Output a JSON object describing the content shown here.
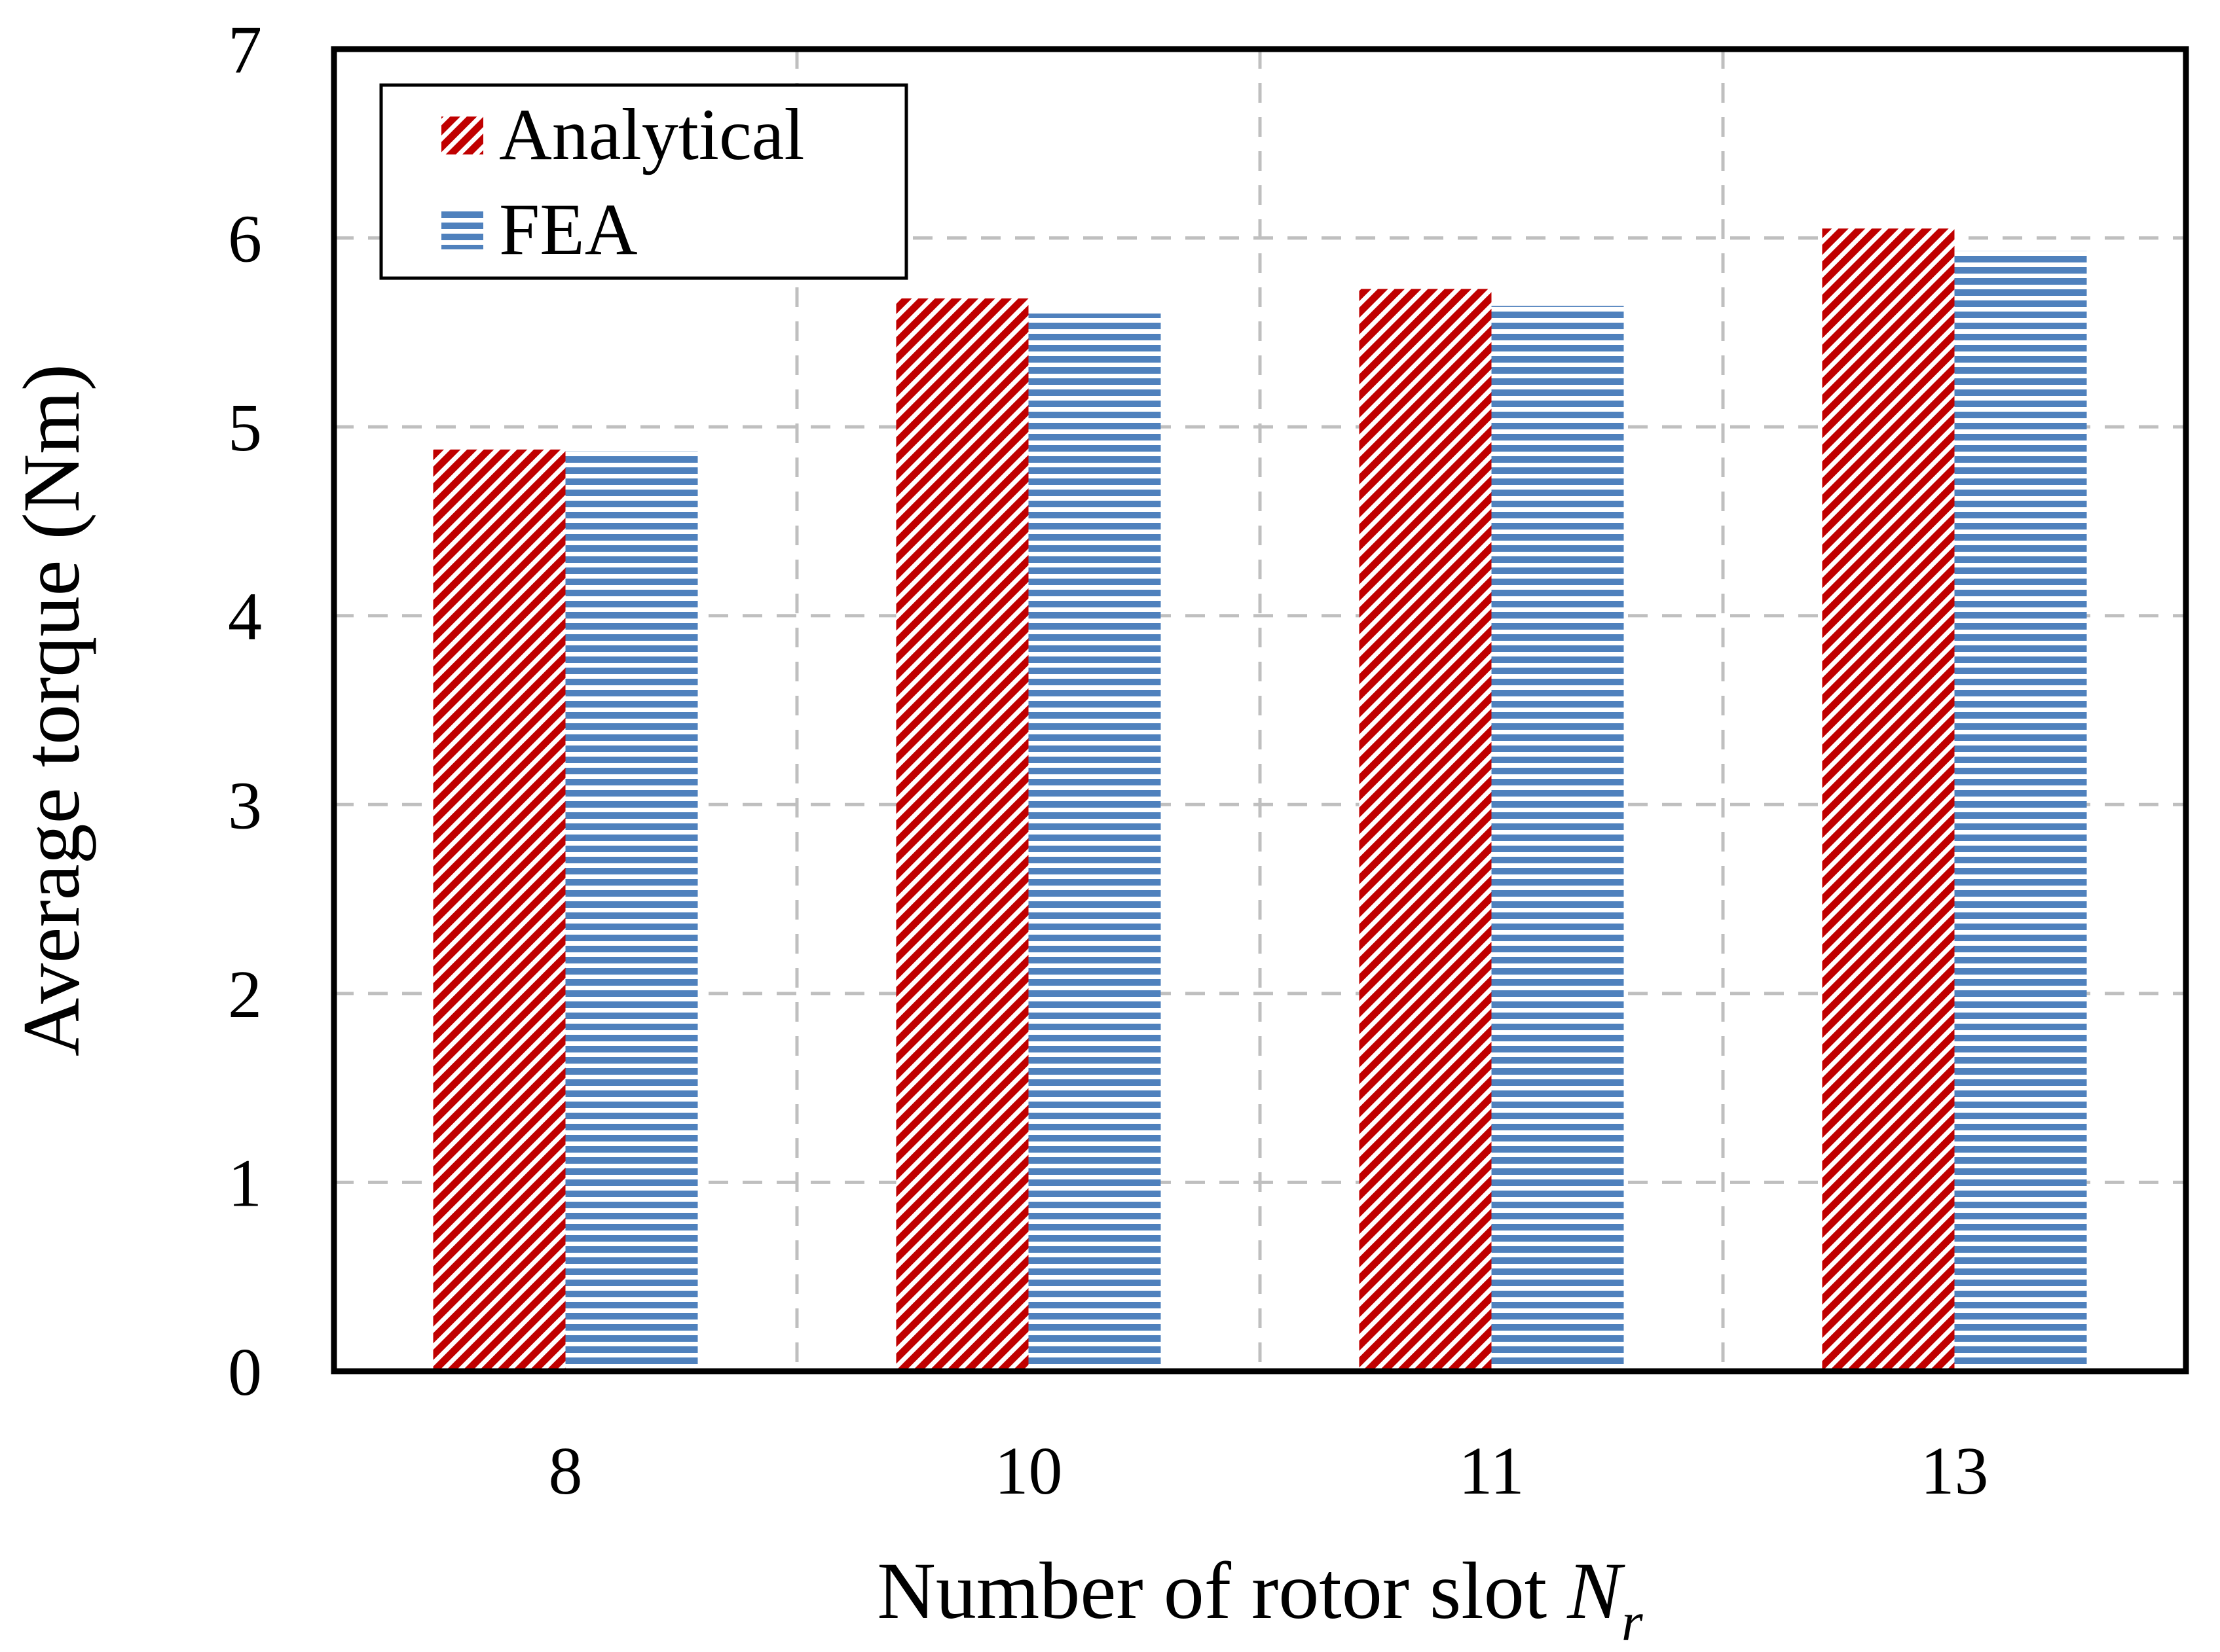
{
  "chart_data": {
    "type": "bar",
    "title": "",
    "categories": [
      "8",
      "10",
      "11",
      "13"
    ],
    "series": [
      {
        "name": "Analytical",
        "values": [
          4.88,
          5.68,
          5.73,
          6.05
        ],
        "color": "#c00000",
        "pattern": "diagonal-hatch"
      },
      {
        "name": "FEA",
        "values": [
          4.87,
          5.6,
          5.64,
          5.93
        ],
        "color": "#4f81bd",
        "pattern": "horizontal-lines"
      }
    ],
    "xlabel": "Number of rotor slot ",
    "xlabel_var": "N",
    "xlabel_sub": "r",
    "ylabel": "Average torque (Nm)",
    "ylim": [
      0,
      7
    ],
    "yticks": [
      "0",
      "1",
      "2",
      "3",
      "4",
      "5",
      "6",
      "7"
    ],
    "grid": true,
    "legend_position": "top-left"
  }
}
